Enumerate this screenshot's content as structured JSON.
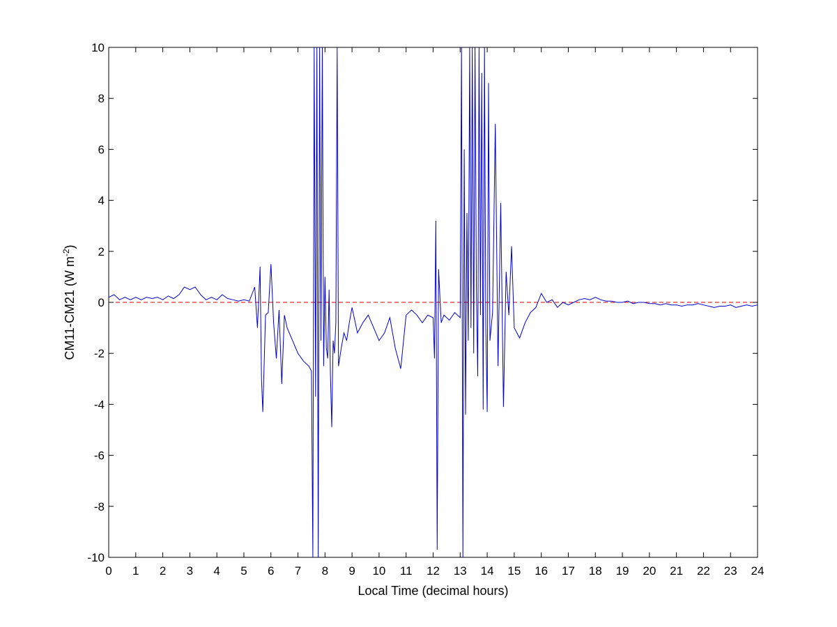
{
  "chart_data": {
    "type": "line",
    "title": "",
    "xlabel": "Local Time (decimal hours)",
    "ylabel_main": "CM11-CM21 (W m",
    "ylabel_sup": "-2",
    "ylabel_close": ")",
    "xlim": [
      0,
      24
    ],
    "ylim": [
      -10,
      10
    ],
    "x_ticks": [
      0,
      1,
      2,
      3,
      4,
      5,
      6,
      7,
      8,
      9,
      10,
      11,
      12,
      13,
      14,
      15,
      16,
      17,
      18,
      19,
      20,
      21,
      22,
      23,
      24
    ],
    "y_ticks": [
      -10,
      -8,
      -6,
      -4,
      -2,
      0,
      2,
      4,
      6,
      8,
      10
    ],
    "grid": false,
    "legend": "none",
    "reference_line": {
      "y": 0,
      "color": "#cc0000",
      "style": "dashed"
    },
    "series_color": "#0000cc",
    "series": [
      {
        "x": [
          0,
          0.2,
          0.4,
          0.6,
          0.8,
          1.0,
          1.2,
          1.4,
          1.6,
          1.8,
          2.0,
          2.2,
          2.4,
          2.6,
          2.8,
          3.0,
          3.2,
          3.4,
          3.6,
          3.8,
          4.0,
          4.2,
          4.4,
          4.6,
          4.8,
          5.0,
          5.2,
          5.4,
          5.5,
          5.6,
          5.65,
          5.7,
          5.8,
          5.9,
          6.0,
          6.1,
          6.2,
          6.3,
          6.4,
          6.5,
          6.6,
          6.8,
          7.0,
          7.2,
          7.4,
          7.5,
          7.55,
          7.6,
          7.65,
          7.7,
          7.75,
          7.8,
          7.85,
          7.9,
          7.95,
          8.0,
          8.05,
          8.1,
          8.15,
          8.2,
          8.25,
          8.3,
          8.35,
          8.4,
          8.45,
          8.5,
          8.6,
          8.7,
          8.8,
          8.9,
          9.0,
          9.2,
          9.4,
          9.6,
          9.8,
          10.0,
          10.2,
          10.4,
          10.6,
          10.8,
          11.0,
          11.2,
          11.4,
          11.6,
          11.8,
          12.0,
          12.05,
          12.1,
          12.15,
          12.2,
          12.3,
          12.4,
          12.6,
          12.8,
          13.0,
          13.05,
          13.1,
          13.15,
          13.2,
          13.25,
          13.3,
          13.35,
          13.4,
          13.45,
          13.5,
          13.55,
          13.6,
          13.65,
          13.7,
          13.75,
          13.8,
          13.85,
          13.9,
          13.95,
          14.0,
          14.05,
          14.1,
          14.2,
          14.3,
          14.4,
          14.5,
          14.6,
          14.7,
          14.8,
          14.9,
          15.0,
          15.2,
          15.4,
          15.6,
          15.8,
          16.0,
          16.2,
          16.4,
          16.6,
          16.8,
          17.0,
          17.2,
          17.4,
          17.6,
          17.8,
          18.0,
          18.2,
          18.4,
          18.6,
          18.8,
          19.0,
          19.2,
          19.4,
          19.6,
          19.8,
          20.0,
          20.2,
          20.4,
          20.6,
          20.8,
          21.0,
          21.2,
          21.4,
          21.6,
          21.8,
          22.0,
          22.2,
          22.4,
          22.6,
          22.8,
          23.0,
          23.2,
          23.4,
          23.6,
          23.8,
          24.0
        ],
        "y": [
          0.2,
          0.3,
          0.1,
          0.2,
          0.1,
          0.2,
          0.1,
          0.2,
          0.15,
          0.2,
          0.1,
          0.25,
          0.15,
          0.3,
          0.6,
          0.5,
          0.6,
          0.3,
          0.1,
          0.2,
          0.1,
          0.3,
          0.15,
          0.1,
          0.05,
          0.1,
          0.05,
          0.6,
          -1.0,
          1.4,
          -3.0,
          -4.3,
          -0.5,
          -0.4,
          1.5,
          -0.8,
          -2.2,
          -0.3,
          -3.2,
          -0.5,
          -1.0,
          -1.5,
          -2.0,
          -2.3,
          -2.5,
          -2.7,
          -10,
          10,
          -3.7,
          10,
          -10,
          10,
          -1.5,
          10,
          -2.5,
          1.0,
          -1.8,
          -2.2,
          0.5,
          -2.8,
          -4.9,
          -1.5,
          -2.0,
          -0.8,
          10,
          -2.5,
          -1.8,
          -1.2,
          -1.5,
          -0.8,
          -0.2,
          -1.2,
          -0.8,
          -0.5,
          -1.0,
          -1.5,
          -1.2,
          -0.6,
          -1.8,
          -2.6,
          -0.5,
          -0.3,
          -0.5,
          -0.8,
          -0.5,
          -0.6,
          -2.2,
          3.2,
          -9.7,
          1.3,
          -0.8,
          -0.5,
          -0.7,
          -0.4,
          -0.6,
          10,
          -10,
          6.0,
          -4.4,
          3.5,
          -1.5,
          10,
          -1.0,
          10,
          -2.0,
          10,
          0.5,
          -2.9,
          10,
          -0.5,
          9.0,
          -4.2,
          10,
          -1.0,
          -4.3,
          8.6,
          -1.5,
          -0.4,
          7.0,
          -2.5,
          3.9,
          -4.1,
          1.2,
          -0.5,
          2.2,
          -1.0,
          -1.4,
          -0.8,
          -0.4,
          -0.2,
          0.35,
          0.0,
          0.1,
          -0.2,
          0.0,
          -0.1,
          0.0,
          0.1,
          0.15,
          0.1,
          0.2,
          0.1,
          0.05,
          0.05,
          0.0,
          0.0,
          0.05,
          -0.05,
          0.0,
          0.0,
          -0.05,
          -0.05,
          -0.1,
          -0.05,
          -0.1,
          -0.1,
          -0.15,
          -0.1,
          -0.1,
          -0.05,
          -0.1,
          -0.15,
          -0.2,
          -0.15,
          -0.15,
          -0.1,
          -0.2,
          -0.15,
          -0.1,
          -0.15,
          -0.1
        ]
      }
    ]
  }
}
